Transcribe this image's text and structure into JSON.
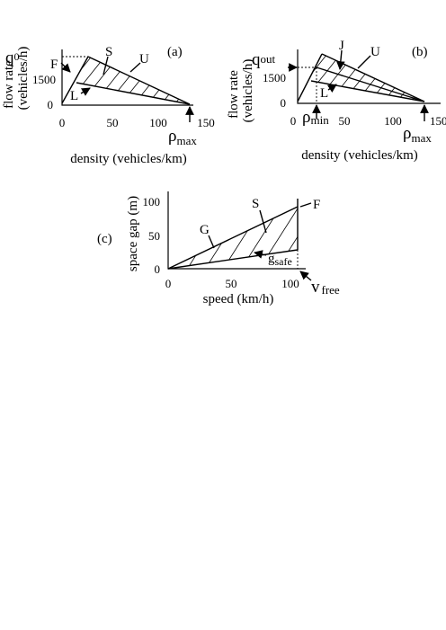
{
  "panel_a": {
    "tag": "(a)",
    "ylabel_line1": "flow rate",
    "ylabel_line2": "(vehicles/h)",
    "xlabel": "density (vehicles/km)",
    "x_ticks": [
      "0",
      "50",
      "100",
      "150"
    ],
    "y_ticks": [
      "0",
      "1500"
    ],
    "q_main": "q",
    "q_sub": "0",
    "rho_main": "ρ",
    "rho_sub": "max",
    "labels": {
      "F": "F",
      "S": "S",
      "U": "U",
      "L": "L"
    }
  },
  "panel_b": {
    "tag": "(b)",
    "ylabel_line1": "flow rate",
    "ylabel_line2": "(vehicles/h)",
    "xlabel": "density (vehicles/km)",
    "x_ticks": [
      "0",
      "50",
      "100",
      "150"
    ],
    "y_ticks": [
      "0",
      "1500"
    ],
    "q_main": "q",
    "q_sub": "out",
    "rho_min_main": "ρ",
    "rho_min_sub": "min",
    "rho_main": "ρ",
    "rho_sub": "max",
    "labels": {
      "J": "J",
      "U": "U",
      "L": "L"
    }
  },
  "panel_c": {
    "tag": "(c)",
    "ylabel": "space gap (m)",
    "xlabel": "speed (km/h)",
    "x_ticks": [
      "0",
      "50",
      "100"
    ],
    "y_ticks": [
      "0",
      "50",
      "100"
    ],
    "v_main": "v",
    "v_sub": "free",
    "g_main": "g",
    "g_sub": "safe",
    "labels": {
      "G": "G",
      "S": "S",
      "F": "F"
    }
  }
}
